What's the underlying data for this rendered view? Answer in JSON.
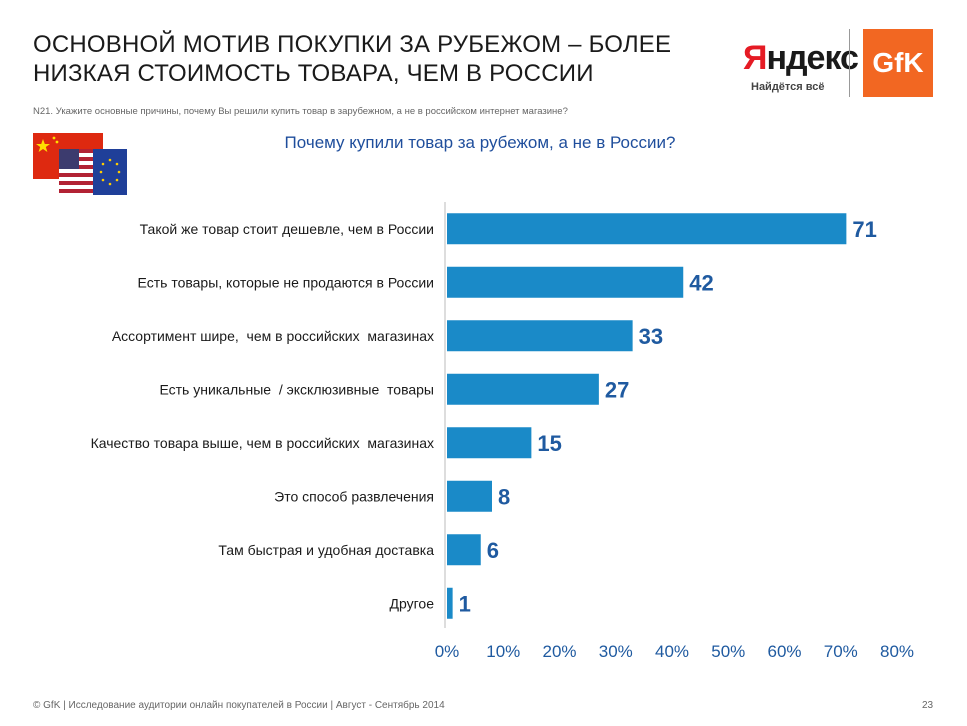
{
  "header": {
    "title": "ОСНОВНОЙ МОТИВ ПОКУПКИ ЗА РУБЕЖОМ – БОЛЕЕ НИЗКАЯ СТОИМОСТЬ ТОВАРА, ЧЕМ В РОССИИ",
    "question": "N21. Укажите основные причины, почему Вы решили купить товар в зарубежном, а не в российском интернет магазине?"
  },
  "logos": {
    "yandex_ya": "Я",
    "yandex_rest": "ндекс",
    "yandex_tagline": "Найдётся всё",
    "gfk": "GfK"
  },
  "footer": {
    "text": "© GfK | Исследование аудитории онлайн покупателей в России | Август - Сентябрь 2014",
    "page": "23"
  },
  "colors": {
    "bar": "#1a8ac8",
    "accent_text": "#1f5aa0",
    "gfk_orange": "#f26722",
    "yandex_red": "#e51b24"
  },
  "chart_data": {
    "type": "bar",
    "orientation": "horizontal",
    "title": "Почему купили товар за рубежом, а не в России?",
    "categories": [
      "Такой же товар стоит дешевле, чем в России",
      "Есть товары, которые не продаются в России",
      "Ассортимент шире,  чем в российских  магазинах",
      "Есть уникальные  / эксклюзивные  товары",
      "Качество товара выше, чем в российских  магазинах",
      "Это способ развлечения",
      "Там быстрая и удобная доставка",
      "Другое"
    ],
    "values": [
      71,
      42,
      33,
      27,
      15,
      8,
      6,
      1
    ],
    "value_labels": [
      "71",
      "42",
      "33",
      "27",
      "15",
      "8",
      "6",
      "1"
    ],
    "xlim": [
      0,
      80
    ],
    "xticks": [
      0,
      10,
      20,
      30,
      40,
      50,
      60,
      70,
      80
    ],
    "xtick_labels": [
      "0%",
      "10%",
      "20%",
      "30%",
      "40%",
      "50%",
      "60%",
      "70%",
      "80%"
    ],
    "grid": false,
    "legend": "none"
  }
}
